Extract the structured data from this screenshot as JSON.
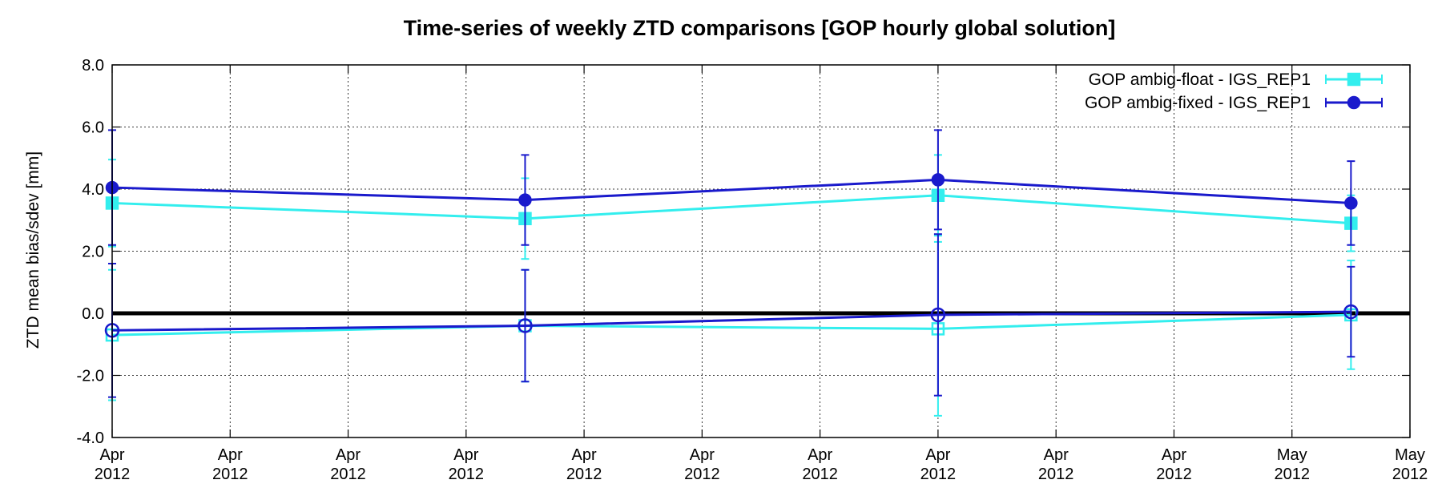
{
  "chart_data": {
    "type": "line",
    "title": "Time-series of weekly ZTD comparisons [GOP hourly global solution]",
    "ylabel": "ZTD mean bias/sdev [mm]",
    "ylim": [
      -4.0,
      8.0
    ],
    "y_ticks": [
      "-4.0",
      "-2.0",
      "0.0",
      "2.0",
      "4.0",
      "6.0",
      "8.0"
    ],
    "y_tick_values": [
      -4,
      -2,
      0,
      2,
      4,
      6,
      8
    ],
    "x_ticks": [
      {
        "month": "Apr",
        "year": "2012"
      },
      {
        "month": "Apr",
        "year": "2012"
      },
      {
        "month": "Apr",
        "year": "2012"
      },
      {
        "month": "Apr",
        "year": "2012"
      },
      {
        "month": "Apr",
        "year": "2012"
      },
      {
        "month": "Apr",
        "year": "2012"
      },
      {
        "month": "Apr",
        "year": "2012"
      },
      {
        "month": "Apr",
        "year": "2012"
      },
      {
        "month": "Apr",
        "year": "2012"
      },
      {
        "month": "Apr",
        "year": "2012"
      },
      {
        "month": "May",
        "year": "2012"
      },
      {
        "month": "May",
        "year": "2012"
      }
    ],
    "x_tick_values": [
      0,
      1,
      2,
      3,
      4,
      5,
      6,
      7,
      8,
      9,
      10,
      11
    ],
    "xlim": [
      0,
      11
    ],
    "grid": true,
    "legend_position": "top-right",
    "zero_line": true,
    "series": [
      {
        "name": "GOP ambig-float - IGS_REP1",
        "color": "#33eeee",
        "marker": "square",
        "x": [
          0,
          3.5,
          7,
          10.5
        ],
        "bias": [
          -0.7,
          -0.4,
          -0.5,
          -0.05
        ],
        "bias_err": [
          2.1,
          1.8,
          2.8,
          1.75
        ],
        "sdev": [
          3.55,
          3.05,
          3.8,
          2.9
        ],
        "sdev_err": [
          1.4,
          1.3,
          1.3,
          0.9
        ]
      },
      {
        "name": "GOP ambig-fixed - IGS_REP1",
        "color": "#1a1acc",
        "marker": "circle",
        "x": [
          0,
          3.5,
          7,
          10.5
        ],
        "bias": [
          -0.55,
          -0.4,
          -0.05,
          0.05
        ],
        "bias_err": [
          2.15,
          1.8,
          2.6,
          1.45
        ],
        "sdev": [
          4.05,
          3.65,
          4.3,
          3.55
        ],
        "sdev_err": [
          1.85,
          1.45,
          1.6,
          1.35
        ]
      }
    ]
  }
}
